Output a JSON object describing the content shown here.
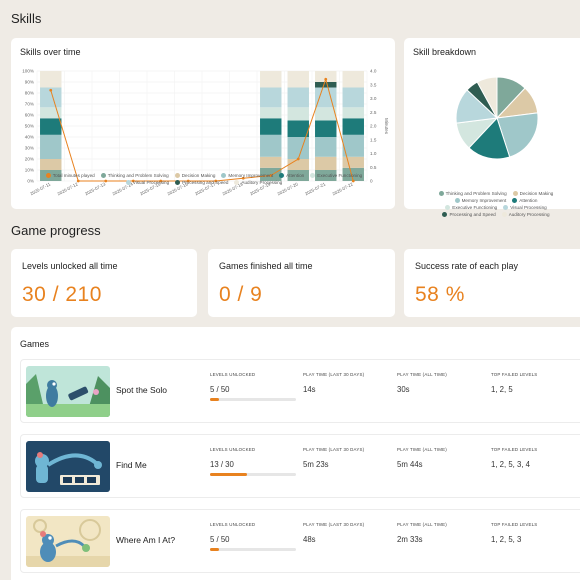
{
  "sections": {
    "skills": "Skills",
    "game_progress": "Game progress"
  },
  "skills_over_time": {
    "title": "Skills over time",
    "left_ticks": [
      "100%",
      "90%",
      "80%",
      "70%",
      "60%",
      "50%",
      "40%",
      "30%",
      "20%",
      "10%",
      "0%"
    ],
    "right_ticks": [
      "4.0",
      "3.5",
      "3.0",
      "2.5",
      "2.0",
      "1.5",
      "1.0",
      "0.5",
      "0"
    ],
    "right_axis_label": "Minutes",
    "dates": [
      "2025-07-11",
      "2025-07-12",
      "2025-07-13",
      "2025-07-14",
      "2025-07-15",
      "2025-07-16",
      "2025-07-17",
      "2025-07-18",
      "2025-07-19",
      "2025-07-20",
      "2025-07-21",
      "2025-07-22"
    ],
    "legend": [
      {
        "label": "Total minutes played",
        "color": "#e8821f"
      },
      {
        "label": "Thinking and Problem Solving",
        "color": "#7fa89a"
      },
      {
        "label": "Decision Making",
        "color": "#dcc9a6"
      },
      {
        "label": "Memory Improvement",
        "color": "#9fc7c9"
      },
      {
        "label": "Attention",
        "color": "#1e7b7a"
      },
      {
        "label": "Executive Functioning",
        "color": "#d3e6df"
      },
      {
        "label": "Visual Processing",
        "color": "#b8d7dc"
      },
      {
        "label": "Processing and Speed",
        "color": "#2f5d52"
      },
      {
        "label": "Auditory Processing",
        "color": "#eee9dc"
      }
    ]
  },
  "chart_data": [
    {
      "type": "bar",
      "title": "Skills over time",
      "categories": [
        "2025-07-11",
        "2025-07-12",
        "2025-07-13",
        "2025-07-14",
        "2025-07-15",
        "2025-07-16",
        "2025-07-17",
        "2025-07-18",
        "2025-07-19",
        "2025-07-20",
        "2025-07-21",
        "2025-07-22"
      ],
      "stacked": true,
      "ylim": [
        0,
        100
      ],
      "y2lim": [
        0,
        4
      ],
      "y2label": "Minutes",
      "series": [
        {
          "name": "Thinking and Problem Solving",
          "color": "#7fa89a",
          "values": [
            10,
            0,
            0,
            0,
            0,
            0,
            0,
            0,
            12,
            10,
            10,
            12
          ]
        },
        {
          "name": "Decision Making",
          "color": "#dcc9a6",
          "values": [
            10,
            0,
            0,
            0,
            0,
            0,
            0,
            0,
            10,
            10,
            12,
            10
          ]
        },
        {
          "name": "Memory Improvement",
          "color": "#9fc7c9",
          "values": [
            22,
            0,
            0,
            0,
            0,
            0,
            0,
            0,
            20,
            20,
            18,
            20
          ]
        },
        {
          "name": "Attention",
          "color": "#1e7b7a",
          "values": [
            15,
            0,
            0,
            0,
            0,
            0,
            0,
            0,
            15,
            15,
            15,
            15
          ]
        },
        {
          "name": "Executive Functioning",
          "color": "#d3e6df",
          "values": [
            10,
            0,
            0,
            0,
            0,
            0,
            0,
            0,
            10,
            12,
            12,
            10
          ]
        },
        {
          "name": "Visual Processing",
          "color": "#b8d7dc",
          "values": [
            18,
            0,
            0,
            0,
            0,
            0,
            0,
            0,
            18,
            18,
            18,
            18
          ]
        },
        {
          "name": "Processing and Speed",
          "color": "#2f5d52",
          "values": [
            0,
            0,
            0,
            0,
            0,
            0,
            0,
            0,
            0,
            0,
            5,
            0
          ]
        },
        {
          "name": "Auditory Processing",
          "color": "#eee9dc",
          "values": [
            15,
            0,
            0,
            0,
            0,
            0,
            0,
            0,
            15,
            15,
            10,
            15
          ]
        }
      ],
      "line": {
        "name": "Total minutes played",
        "color": "#e8821f",
        "axis": "right",
        "values": [
          3.3,
          0,
          0,
          0,
          0,
          0,
          0,
          0.1,
          0.2,
          0.8,
          3.7,
          0
        ]
      }
    },
    {
      "type": "pie",
      "title": "Skill breakdown",
      "slices": [
        {
          "label": "Thinking and Problem Solving",
          "color": "#7fa89a",
          "value": 12
        },
        {
          "label": "Decision Making",
          "color": "#dcc9a6",
          "value": 11
        },
        {
          "label": "Memory Improvement",
          "color": "#9fc7c9",
          "value": 22
        },
        {
          "label": "Attention",
          "color": "#1e7b7a",
          "value": 17
        },
        {
          "label": "Executive Functioning",
          "color": "#d3e6df",
          "value": 11
        },
        {
          "label": "Visual Processing",
          "color": "#b8d7dc",
          "value": 14
        },
        {
          "label": "Processing and Speed",
          "color": "#2f5d52",
          "value": 5
        },
        {
          "label": "Auditory Processing",
          "color": "#eee9dc",
          "value": 8
        }
      ]
    }
  ],
  "skill_breakdown": {
    "title": "Skill breakdown"
  },
  "stats": [
    {
      "label": "Levels unlocked all time",
      "value": "30 / 210"
    },
    {
      "label": "Games finished all time",
      "value": "0 / 9"
    },
    {
      "label": "Success rate of each play",
      "value": "58 %"
    }
  ],
  "games": {
    "title": "Games",
    "headers": {
      "levels": "Levels unlocked",
      "play30": "Play time (last 30 days)",
      "playall": "Play time (all time)",
      "failed": "Top failed levels"
    },
    "rows": [
      {
        "name": "Spot the Solo",
        "levels": "5 / 50",
        "progress": 0.1,
        "play30": "14s",
        "playall": "30s",
        "failed": "1, 2, 5"
      },
      {
        "name": "Find Me",
        "levels": "13 / 30",
        "progress": 0.43,
        "play30": "5m 23s",
        "playall": "5m 44s",
        "failed": "1, 2, 5, 3, 4"
      },
      {
        "name": "Where Am I At?",
        "levels": "5 / 50",
        "progress": 0.1,
        "play30": "48s",
        "playall": "2m 33s",
        "failed": "1, 2, 5, 3"
      }
    ]
  }
}
